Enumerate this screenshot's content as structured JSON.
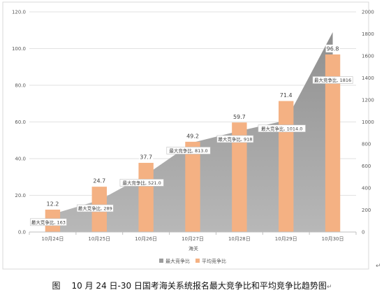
{
  "chart_data": {
    "type": "bar+area",
    "categories": [
      "10月24日",
      "10月25日",
      "10月26日",
      "10月27日",
      "10月28日",
      "10月29日",
      "10月30日"
    ],
    "xlabel": "海关",
    "left_axis": {
      "min": 0,
      "max": 120,
      "step": 20,
      "ticks": [
        "0.0",
        "20.0",
        "40.0",
        "60.0",
        "80.0",
        "100.0",
        "120.0"
      ]
    },
    "right_axis": {
      "min": 0,
      "max": 2000,
      "step": 200,
      "ticks": [
        "0",
        "200",
        "400",
        "600",
        "800",
        "1000",
        "1200",
        "1400",
        "1600",
        "1800",
        "2000"
      ]
    },
    "grid": true,
    "legend_position": "bottom",
    "series": [
      {
        "name": "最大竞争比",
        "type": "area",
        "axis": "right",
        "values": [
          163,
          289,
          521,
          813,
          918,
          1014,
          1816
        ],
        "labels": [
          "最大竞争比, 163",
          "最大竞争比, 289",
          "最大竞争比, 521.0",
          "最大竞争比, 813.0",
          "最大竞争比, 918",
          "最大竞争比, 1014.0",
          "最大竞争比, 1816"
        ],
        "color": "#9c9c9c"
      },
      {
        "name": "平均竞争比",
        "type": "bar",
        "axis": "left",
        "values": [
          12.2,
          24.7,
          37.7,
          49.2,
          59.7,
          71.4,
          96.8
        ],
        "labels": [
          "12.2",
          "24.7",
          "37.7",
          "49.2",
          "59.7",
          "71.4",
          "96.8"
        ],
        "color": "#f4b183"
      }
    ]
  },
  "caption": {
    "prefix": "图",
    "text": "10 月 24 日-30 日国考海关系统报名最大竞争比和平均竞争比趋势图",
    "mark": "↵"
  },
  "return_mark": "↵"
}
